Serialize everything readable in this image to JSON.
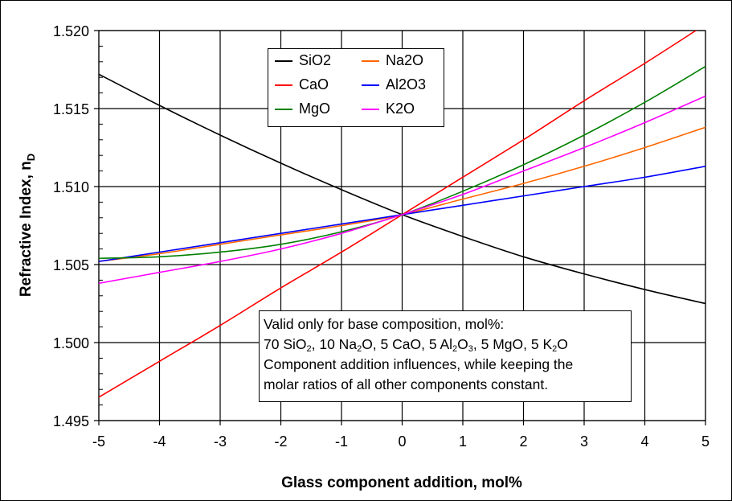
{
  "chart_data": {
    "type": "line",
    "xlabel": "Glass component addition, mol%",
    "ylabel": "Refractive Index, n",
    "ylabel_subscript": "D",
    "xlim": [
      -5,
      5
    ],
    "ylim": [
      1.495,
      1.52
    ],
    "xticks": [
      "-5",
      "-4",
      "-3",
      "-2",
      "-1",
      "0",
      "1",
      "2",
      "3",
      "4",
      "5"
    ],
    "yticks": [
      "1.495",
      "1.500",
      "1.505",
      "1.510",
      "1.515",
      "1.520"
    ],
    "grid": true,
    "legend_position": "top-center",
    "x": [
      -5,
      -4,
      -3,
      -2,
      -1,
      0,
      1,
      2,
      3,
      4,
      5
    ],
    "series": [
      {
        "name": "SiO2",
        "color": "#000000",
        "values": [
          1.5172,
          1.5152,
          1.5133,
          1.5115,
          1.5098,
          1.5082,
          1.5068,
          1.5055,
          1.5044,
          1.5034,
          1.5025
        ]
      },
      {
        "name": "Na2O",
        "color": "#ff6600",
        "values": [
          1.5052,
          1.5057,
          1.5063,
          1.5069,
          1.5075,
          1.5082,
          1.5092,
          1.5102,
          1.5113,
          1.5125,
          1.5138
        ]
      },
      {
        "name": "CaO",
        "color": "#ff0000",
        "values": [
          1.4965,
          1.4988,
          1.5011,
          1.5035,
          1.5058,
          1.5082,
          1.5106,
          1.513,
          1.5155,
          1.5179,
          1.5204
        ]
      },
      {
        "name": "Al2O3",
        "color": "#0000ff",
        "values": [
          1.5052,
          1.5058,
          1.5064,
          1.507,
          1.5076,
          1.5082,
          1.5088,
          1.5094,
          1.51,
          1.5106,
          1.5113
        ]
      },
      {
        "name": "MgO",
        "color": "#008000",
        "values": [
          1.5054,
          1.5055,
          1.5058,
          1.5063,
          1.5071,
          1.5082,
          1.5097,
          1.5114,
          1.5133,
          1.5154,
          1.5177
        ]
      },
      {
        "name": "K2O",
        "color": "#ff00ff",
        "values": [
          1.5038,
          1.5045,
          1.5052,
          1.506,
          1.507,
          1.5082,
          1.5095,
          1.511,
          1.5125,
          1.5141,
          1.5158
        ]
      }
    ],
    "annotation": {
      "line1": "Valid only for base composition, mol%:",
      "line2": [
        {
          "t": "70 SiO"
        },
        {
          "s": "2"
        },
        {
          "t": ", 10 Na"
        },
        {
          "s": "2"
        },
        {
          "t": "O, 5 CaO, 5 Al"
        },
        {
          "s": "2"
        },
        {
          "t": "O"
        },
        {
          "s": "3"
        },
        {
          "t": ", 5 MgO, 5 K"
        },
        {
          "s": "2"
        },
        {
          "t": "O"
        }
      ],
      "line3": "Component addition influences, while keeping the",
      "line4": "molar ratios of all other components constant."
    }
  }
}
